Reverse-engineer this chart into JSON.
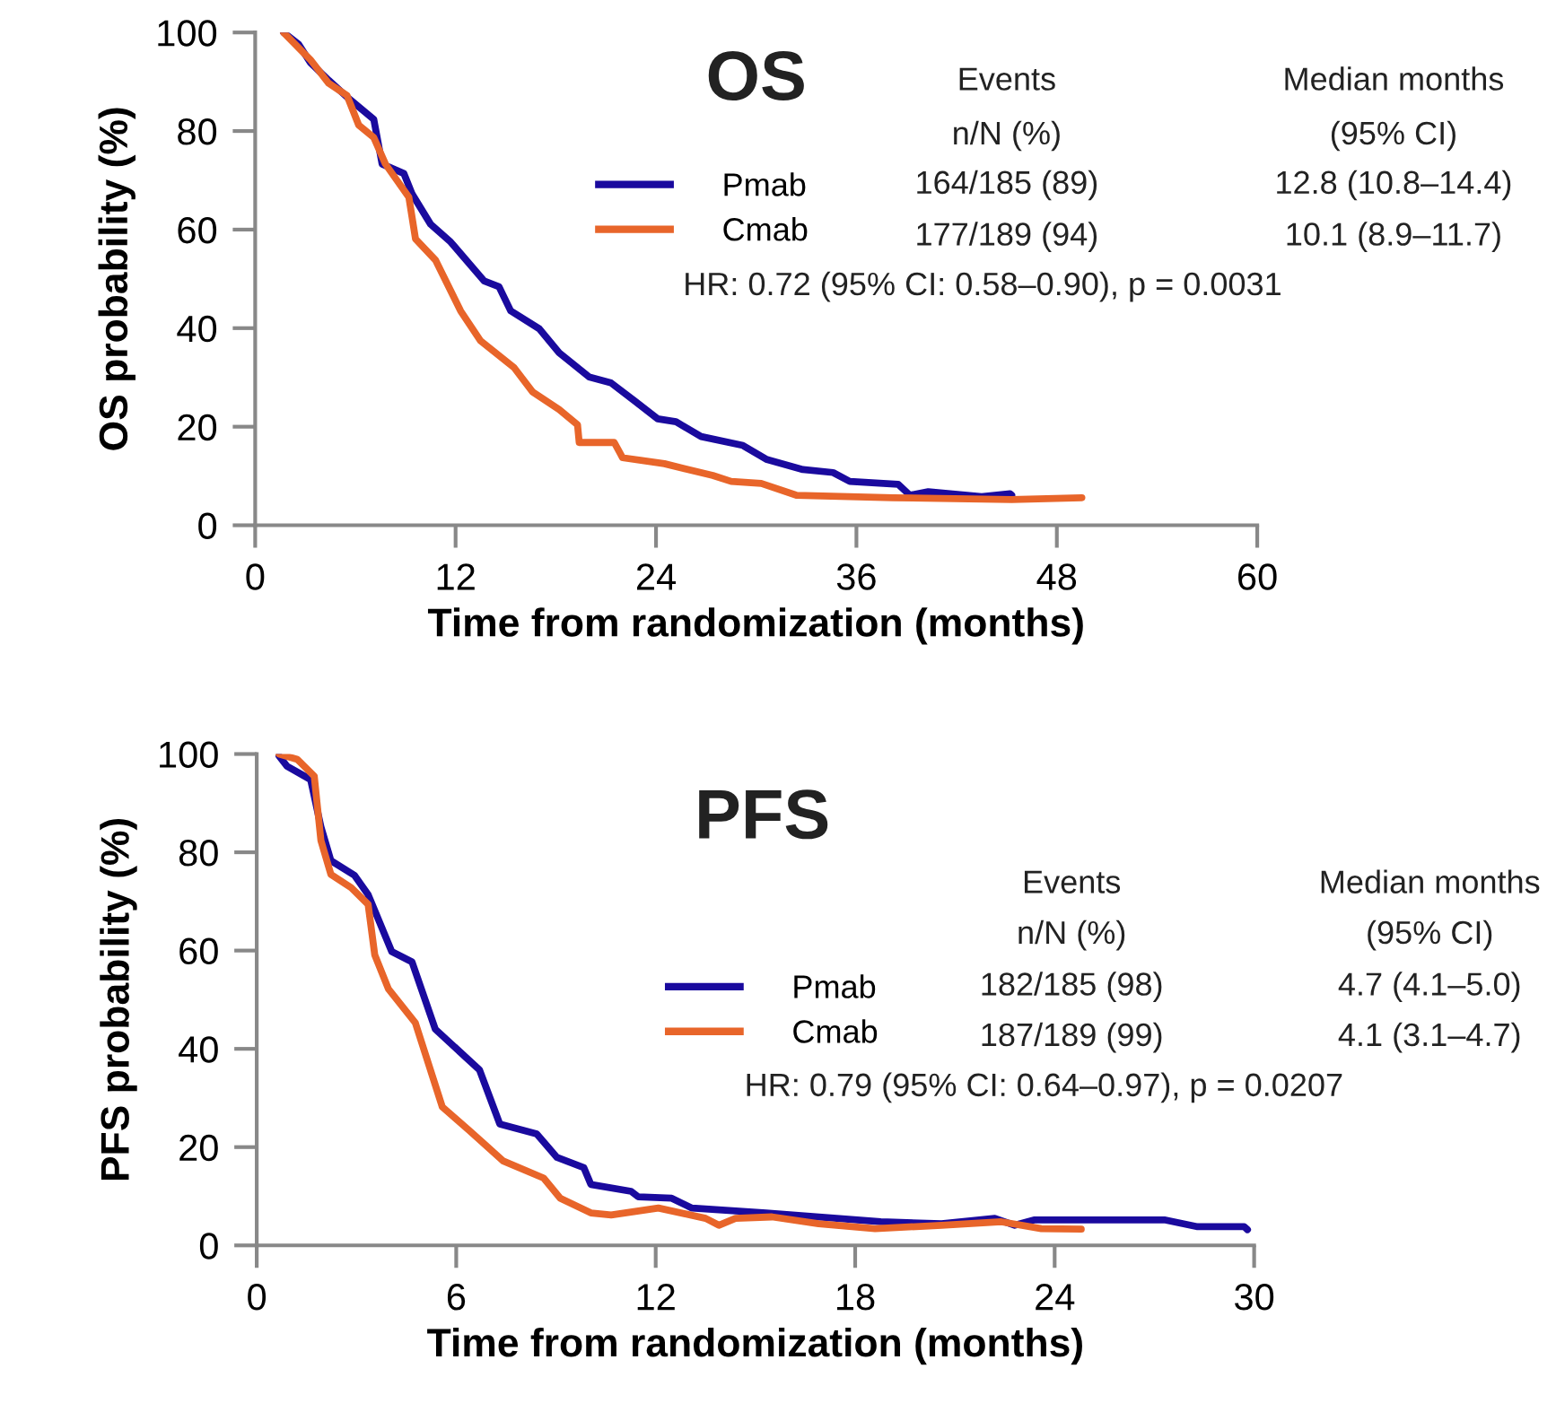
{
  "chart_data": [
    {
      "type": "line",
      "title": "OS",
      "xlabel": "Time from randomization (months)",
      "ylabel": "OS probability (%)",
      "xlim": [
        0,
        60
      ],
      "xticks": [
        0,
        12,
        24,
        36,
        48,
        60
      ],
      "ylim": [
        0,
        100
      ],
      "yticks": [
        0,
        20,
        40,
        60,
        80,
        100
      ],
      "legend": "top",
      "annotations": [
        "Events",
        "n/N (%)",
        "Median months",
        "(95% CI)",
        "164/185 (89)",
        "12.8 (10.8–14.4)",
        "177/189 (94)",
        "10.1 (8.9–11.7)",
        "HR: 0.72 (95% CI: 0.58–0.90), p = 0.0031"
      ],
      "series": [
        {
          "name": "Pmab",
          "color": "#1a0a9e",
          "x": [
            1.7,
            2.6,
            3.3,
            4.4,
            5.6,
            7.1,
            7.6,
            8.9,
            9.4,
            10.5,
            11.7,
            13.7,
            14.6,
            15.3,
            17.0,
            18.2,
            20.0,
            21.3,
            22.7,
            24.1,
            25.2,
            26.7,
            29.2,
            30.6,
            32.8,
            34.6,
            35.6,
            38.5,
            39.2,
            40.3,
            43.5,
            45.2,
            45.3
          ],
          "values": [
            100,
            97.6,
            93.9,
            90.3,
            86.6,
            82.4,
            73.3,
            71.4,
            67.2,
            61.1,
            57.5,
            49.6,
            48.4,
            43.5,
            39.9,
            35.0,
            30.1,
            28.9,
            25.3,
            21.6,
            21.0,
            18.0,
            16.2,
            13.4,
            11.3,
            10.7,
            8.9,
            8.3,
            6.1,
            6.8,
            5.8,
            6.4,
            6.1
          ]
        },
        {
          "name": "Cmab",
          "color": "#e8652a",
          "x": [
            1.7,
            3.3,
            4.4,
            5.5,
            6.2,
            7.1,
            7.8,
            9.2,
            9.6,
            10.8,
            12.3,
            13.5,
            15.5,
            16.6,
            18.2,
            19.3,
            19.4,
            21.5,
            22.0,
            24.5,
            27.4,
            28.5,
            30.3,
            32.4,
            38.2,
            45.3,
            49.5
          ],
          "values": [
            100,
            94.5,
            89.7,
            87.2,
            81.2,
            78.7,
            73.3,
            66.6,
            58.1,
            53.8,
            43.5,
            37.4,
            32.0,
            27.1,
            23.5,
            20.4,
            16.8,
            16.8,
            13.7,
            12.5,
            10.1,
            8.9,
            8.5,
            6.1,
            5.6,
            5.2,
            5.6
          ]
        }
      ]
    },
    {
      "type": "line",
      "title": "PFS",
      "xlabel": "Time from randomization (months)",
      "ylabel": "PFS probability (%)",
      "xlim": [
        0,
        30
      ],
      "xticks": [
        0,
        6,
        12,
        18,
        24,
        30
      ],
      "ylim": [
        0,
        100
      ],
      "yticks": [
        0,
        20,
        40,
        60,
        80,
        100
      ],
      "legend": "right",
      "annotations": [
        "Events",
        "n/N (%)",
        "Median months",
        "(95% CI)",
        "182/185 (98)",
        "4.7 (4.1–5.0)",
        "187/189 (99)",
        "4.1 (3.1–4.7)",
        "HR: 0.79 (95% CI: 0.64–0.97), p = 0.0207"
      ],
      "series": [
        {
          "name": "Pmab",
          "color": "#1a0a9e",
          "x": [
            0.67,
            0.91,
            1.62,
            1.93,
            2.23,
            2.94,
            3.35,
            4.06,
            4.67,
            5.37,
            6.7,
            7.31,
            8.42,
            9.03,
            9.84,
            10.05,
            11.26,
            11.47,
            12.48,
            13.09,
            15.32,
            18.77,
            20.6,
            22.2,
            22.8,
            23.4,
            25.7,
            27.3,
            28.3,
            29.7,
            29.8
          ],
          "values": [
            99.6,
            97.5,
            94.8,
            85.2,
            78.3,
            75.3,
            71.4,
            59.8,
            57.7,
            44.0,
            35.7,
            24.7,
            22.7,
            17.9,
            15.8,
            12.4,
            11.0,
            9.9,
            9.6,
            7.6,
            6.6,
            4.8,
            4.4,
            5.5,
            4.1,
            5.2,
            5.2,
            5.2,
            3.8,
            3.8,
            3.2
          ]
        },
        {
          "name": "Cmab",
          "color": "#e8652a",
          "x": [
            0.67,
            1.22,
            1.73,
            1.93,
            2.23,
            2.84,
            3.35,
            3.55,
            3.96,
            4.77,
            5.58,
            6.39,
            7.41,
            8.63,
            9.13,
            10.05,
            10.66,
            12.08,
            13.5,
            13.9,
            14.4,
            15.5,
            16.9,
            18.6,
            20.6,
            22.4,
            23.6,
            24.8
          ],
          "values": [
            100,
            98.9,
            95.5,
            82.4,
            75.5,
            72.8,
            69.4,
            59.1,
            52.2,
            45.3,
            28.2,
            23.4,
            17.2,
            13.7,
            9.6,
            6.6,
            6.2,
            7.6,
            5.5,
            4.1,
            5.5,
            5.8,
            4.4,
            3.4,
            4.1,
            4.8,
            3.4,
            3.3
          ]
        }
      ]
    }
  ]
}
